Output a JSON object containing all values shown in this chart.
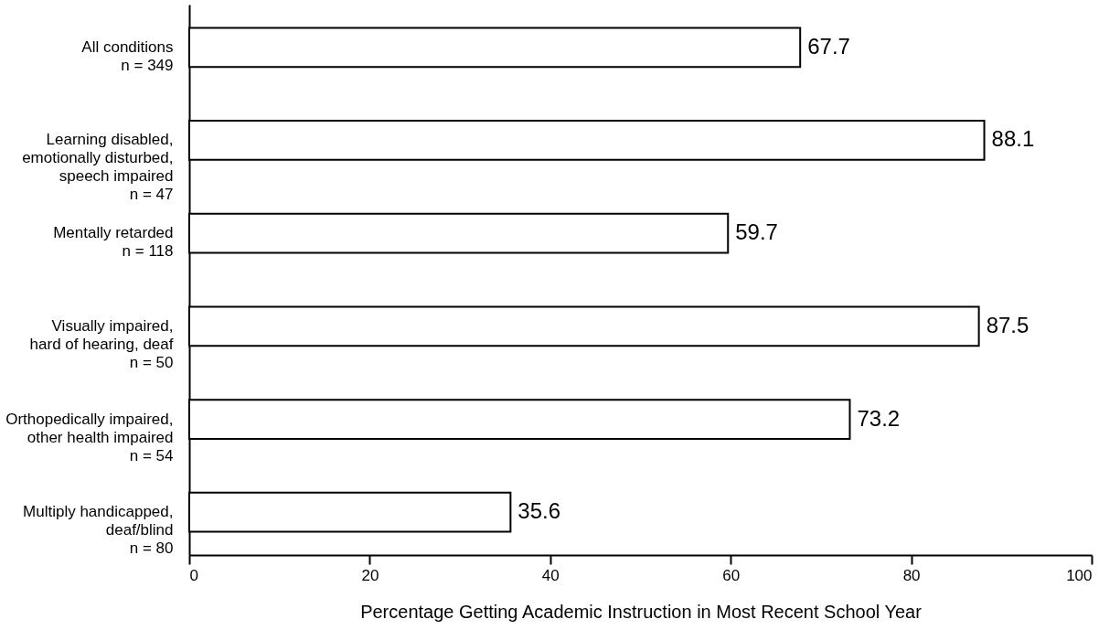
{
  "chart_data": {
    "type": "bar",
    "orientation": "horizontal",
    "categories": [
      "All conditions\nn = 349",
      "Learning disabled,\nemotionally disturbed,\nspeech impaired\nn = 47",
      "Mentally retarded\nn = 118",
      "Visually impaired,\nhard of hearing, deaf\nn = 50",
      "Orthopedically impaired,\nother health impaired\nn = 54",
      "Multiply handicapped,\ndeaf/blind\nn = 80"
    ],
    "values": [
      67.7,
      88.1,
      59.7,
      87.5,
      73.2,
      35.6
    ],
    "color": "#ffffff",
    "xlabel": "Percentage Getting Academic Instruction in Most Recent School Year",
    "xlim": [
      0,
      100
    ],
    "xticks": [
      0,
      20,
      40,
      60,
      80,
      100
    ],
    "data_labels": true,
    "grid": false
  }
}
